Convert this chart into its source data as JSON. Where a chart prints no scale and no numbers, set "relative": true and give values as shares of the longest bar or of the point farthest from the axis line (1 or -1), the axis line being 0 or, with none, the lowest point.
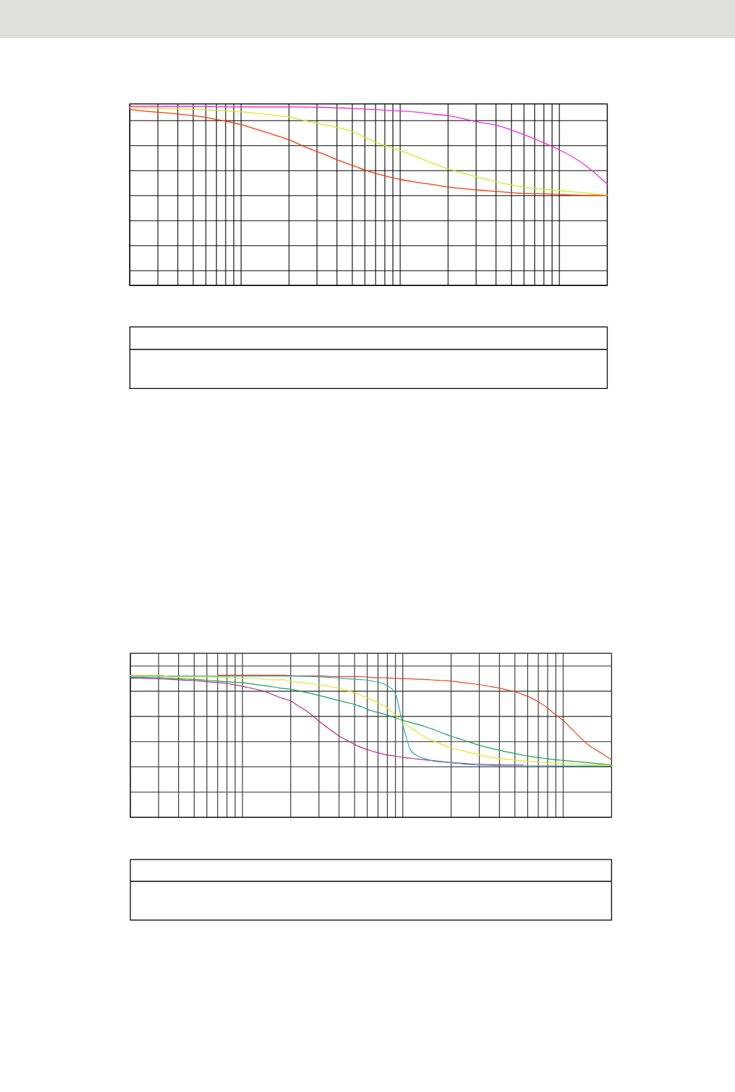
{
  "chart_data": [
    {
      "type": "line",
      "relative": true,
      "grid": true,
      "categories": [
        null,
        null,
        null,
        null,
        null,
        null,
        null,
        null,
        null,
        null,
        null,
        null,
        null,
        null,
        null,
        null,
        null,
        null,
        null,
        null,
        null,
        null,
        null,
        null,
        null,
        null,
        null,
        null,
        null,
        null,
        null
      ],
      "series": [
        {
          "color": "#ff3300",
          "values": [
            0.983,
            0.973,
            0.966,
            0.957,
            0.948,
            0.935,
            0.918,
            0.898,
            0.871,
            0.843,
            0.814,
            0.774,
            0.74,
            0.703,
            0.67,
            0.638,
            0.613,
            0.592,
            0.577,
            0.564,
            0.55,
            0.54,
            0.532,
            0.526,
            0.518,
            0.514,
            0.512,
            0.509,
            0.505,
            0.504,
            0.503
          ]
        },
        {
          "color": "#ccee11",
          "values": [
            0.993,
            0.992,
            0.989,
            0.986,
            0.983,
            0.98,
            0.976,
            0.97,
            0.961,
            0.952,
            0.94,
            0.92,
            0.901,
            0.883,
            0.859,
            0.818,
            0.782,
            0.753,
            0.72,
            0.684,
            0.651,
            0.626,
            0.602,
            0.579,
            0.561,
            0.546,
            0.537,
            0.53,
            0.522,
            0.514,
            0.504
          ]
        },
        {
          "color": "#ff22dd",
          "values": [
            1.0,
            1.0,
            1.0,
            1.0,
            1.0,
            0.999,
            0.998,
            0.997,
            0.997,
            0.997,
            0.997,
            0.996,
            0.995,
            0.992,
            0.989,
            0.984,
            0.979,
            0.974,
            0.968,
            0.957,
            0.948,
            0.93,
            0.911,
            0.895,
            0.868,
            0.834,
            0.797,
            0.757,
            0.709,
            0.644,
            0.566
          ]
        }
      ]
    },
    {
      "type": "line",
      "relative": true,
      "grid": true,
      "categories": [
        null,
        null,
        null,
        null,
        null,
        null,
        null,
        null,
        null,
        null,
        null,
        null,
        null,
        null,
        null,
        null,
        null,
        null,
        null,
        null,
        null,
        null,
        null,
        null,
        null,
        null,
        null,
        null,
        null,
        null,
        null,
        null,
        null,
        null,
        null,
        null,
        null,
        null,
        null,
        null,
        null,
        null,
        null,
        null,
        null,
        null,
        null,
        null,
        null,
        null,
        null,
        null,
        null,
        null,
        null,
        null,
        null,
        null,
        null,
        null,
        null
      ],
      "series": [
        {
          "color": "#e8441e",
          "values": [
            null,
            null,
            null,
            null,
            null,
            null,
            null,
            null,
            null,
            null,
            null,
            1.0,
            1.0,
            1.0,
            1.0,
            1.0,
            1.0,
            1.0,
            1.0,
            1.0,
            0.997,
            0.995,
            0.995,
            0.995,
            0.995,
            0.99,
            0.99,
            0.99,
            0.99,
            0.989,
            0.984,
            0.982,
            0.981,
            0.978,
            0.975,
            0.974,
            0.971,
            0.969,
            0.965,
            0.962,
            0.958,
            0.951,
            0.944,
            0.937,
            0.929,
            0.919,
            0.909,
            0.896,
            0.883,
            0.862,
            0.84,
            0.808,
            0.77,
            0.723,
            0.681,
            0.624,
            0.568,
            0.515,
            0.478,
            0.442,
            0.405
          ]
        },
        {
          "color": "#b82a78",
          "values": [
            0.979,
            0.978,
            0.976,
            0.975,
            0.973,
            0.97,
            0.967,
            0.964,
            0.962,
            0.956,
            0.951,
            0.947,
            0.942,
            0.932,
            0.922,
            0.909,
            0.896,
            0.881,
            0.858,
            0.836,
            0.818,
            0.782,
            0.747,
            0.701,
            0.656,
            0.613,
            0.573,
            0.543,
            0.512,
            0.487,
            0.468,
            0.453,
            0.439,
            0.431,
            0.422,
            0.416,
            0.409,
            0.403,
            0.398,
            0.392,
            0.386,
            0.382,
            0.378,
            0.374,
            0.372,
            0.371,
            0.37,
            0.369,
            0.369,
            0.368,
            null,
            null,
            null,
            null,
            null,
            null,
            null,
            null,
            null,
            null,
            null
          ]
        },
        {
          "color": "#12a055",
          "values": [
            0.985,
            0.985,
            0.984,
            0.983,
            0.981,
            0.979,
            0.975,
            0.973,
            0.97,
            0.966,
            0.962,
            0.958,
            0.954,
            0.95,
            0.946,
            0.939,
            0.932,
            0.924,
            0.916,
            0.907,
            0.901,
            0.889,
            0.877,
            0.865,
            0.851,
            0.836,
            0.822,
            0.808,
            0.793,
            0.774,
            0.75,
            0.736,
            0.72,
            0.701,
            0.682,
            0.667,
            0.652,
            0.634,
            0.613,
            0.592,
            0.571,
            0.553,
            0.535,
            0.516,
            0.5,
            0.486,
            0.472,
            0.46,
            0.449,
            0.437,
            0.428,
            0.42,
            0.413,
            0.406,
            0.401,
            0.396,
            0.391,
            0.386,
            0.38,
            0.375,
            0.369
          ]
        },
        {
          "color": "#2ea6c4",
          "values": [
            0.993,
            0.993,
            0.993,
            0.993,
            0.993,
            0.993,
            0.993,
            0.993,
            0.993,
            0.993,
            0.993,
            0.993,
            0.993,
            0.993,
            0.993,
            0.993,
            0.993,
            0.993,
            0.993,
            0.993,
            0.993,
            0.992,
            0.991,
            0.989,
            0.987,
            0.983,
            0.98,
            0.975,
            0.971,
            0.968,
            0.96,
            0.949,
            0.927,
            0.876,
            0.647,
            0.469,
            0.428,
            0.409,
            0.394,
            0.389,
            0.384,
            0.379,
            0.373,
            0.369,
            0.367,
            0.366,
            0.364,
            0.364,
            0.364,
            0.364,
            0.364,
            0.364,
            0.364,
            0.362,
            0.362,
            0.362,
            0.362,
            0.362,
            0.362,
            0.362,
            0.361
          ]
        },
        {
          "color": "#e2e61a",
          "values": [
            0.998,
            0.998,
            0.998,
            0.998,
            0.998,
            0.988,
            0.988,
            0.988,
            0.988,
            0.988,
            0.986,
            0.986,
            0.986,
            0.978,
            0.978,
            0.978,
            0.978,
            0.967,
            0.967,
            0.967,
            0.958,
            0.951,
            0.944,
            0.937,
            0.929,
            0.919,
            0.909,
            0.893,
            0.876,
            0.852,
            0.829,
            0.802,
            0.771,
            0.723,
            0.668,
            0.629,
            0.592,
            0.556,
            0.533,
            0.511,
            0.489,
            0.474,
            0.46,
            0.446,
            0.434,
            0.424,
            0.414,
            0.408,
            0.403,
            0.397,
            0.393,
            0.389,
            0.385,
            0.381,
            0.379,
            0.377,
            0.375,
            0.372,
            0.37,
            0.368,
            0.364
          ]
        }
      ]
    }
  ]
}
